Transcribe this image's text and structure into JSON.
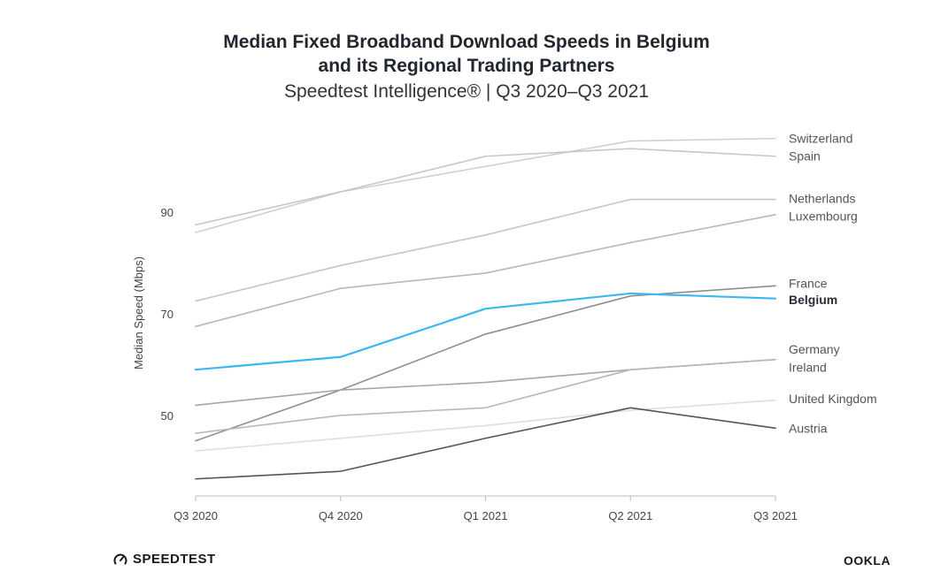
{
  "header": {
    "title_line1": "Median Fixed Broadband Download Speeds in Belgium",
    "title_line2": "and its Regional Trading Partners",
    "subtitle": "Speedtest Intelligence® | Q3 2020–Q3 2021"
  },
  "footer": {
    "left_brand": "SPEEDTEST",
    "left_icon": "speedometer-icon",
    "right_brand": "OOKLA"
  },
  "chart_data": {
    "type": "line",
    "categories": [
      "Q3 2020",
      "Q4 2020",
      "Q1 2021",
      "Q2 2021",
      "Q3 2021"
    ],
    "ylabel": "Median Speed (Mbps)",
    "xlabel": "",
    "yticks": [
      50,
      70,
      90
    ],
    "ylim": [
      34.5,
      106
    ],
    "grid": false,
    "legend": "right-end labels",
    "series": [
      {
        "name": "Switzerland",
        "values": [
          86.0,
          94.0,
          99.0,
          104.0,
          104.5
        ],
        "color": "#cfcfcf",
        "bold": false,
        "label_y": 104.5
      },
      {
        "name": "Spain",
        "values": [
          87.5,
          94.0,
          101.0,
          102.5,
          101.0
        ],
        "color": "#c6c6c6",
        "bold": false,
        "label_y": 101.0
      },
      {
        "name": "Netherlands",
        "values": [
          72.5,
          79.5,
          85.5,
          92.5,
          92.5
        ],
        "color": "#c6c6c6",
        "bold": false,
        "label_y": 92.7
      },
      {
        "name": "Luxembourg",
        "values": [
          67.5,
          75.0,
          78.0,
          84.0,
          89.5
        ],
        "color": "#b8b8b8",
        "bold": false,
        "label_y": 89.2
      },
      {
        "name": "France",
        "values": [
          45.0,
          55.0,
          66.0,
          73.5,
          75.5
        ],
        "color": "#8e8e8e",
        "bold": false,
        "label_y": 76.0
      },
      {
        "name": "Belgium",
        "values": [
          59.0,
          61.5,
          71.0,
          74.0,
          73.0
        ],
        "color": "#3ab8f0",
        "bold": true,
        "label_y": 72.8
      },
      {
        "name": "Germany",
        "values": [
          52.0,
          55.0,
          56.5,
          59.0,
          61.0
        ],
        "color": "#a6a6a6",
        "bold": false,
        "label_y": 63.0
      },
      {
        "name": "Ireland",
        "values": [
          46.5,
          50.0,
          51.5,
          59.0,
          61.0
        ],
        "color": "#b8b8b8",
        "bold": false,
        "label_y": 59.5
      },
      {
        "name": "United Kingdom",
        "values": [
          43.0,
          45.5,
          48.0,
          51.0,
          53.0
        ],
        "color": "#dedede",
        "bold": false,
        "label_y": 53.3
      },
      {
        "name": "Austria",
        "values": [
          37.5,
          39.0,
          45.5,
          51.5,
          47.5
        ],
        "color": "#555555",
        "bold": false,
        "label_y": 47.5
      }
    ]
  }
}
